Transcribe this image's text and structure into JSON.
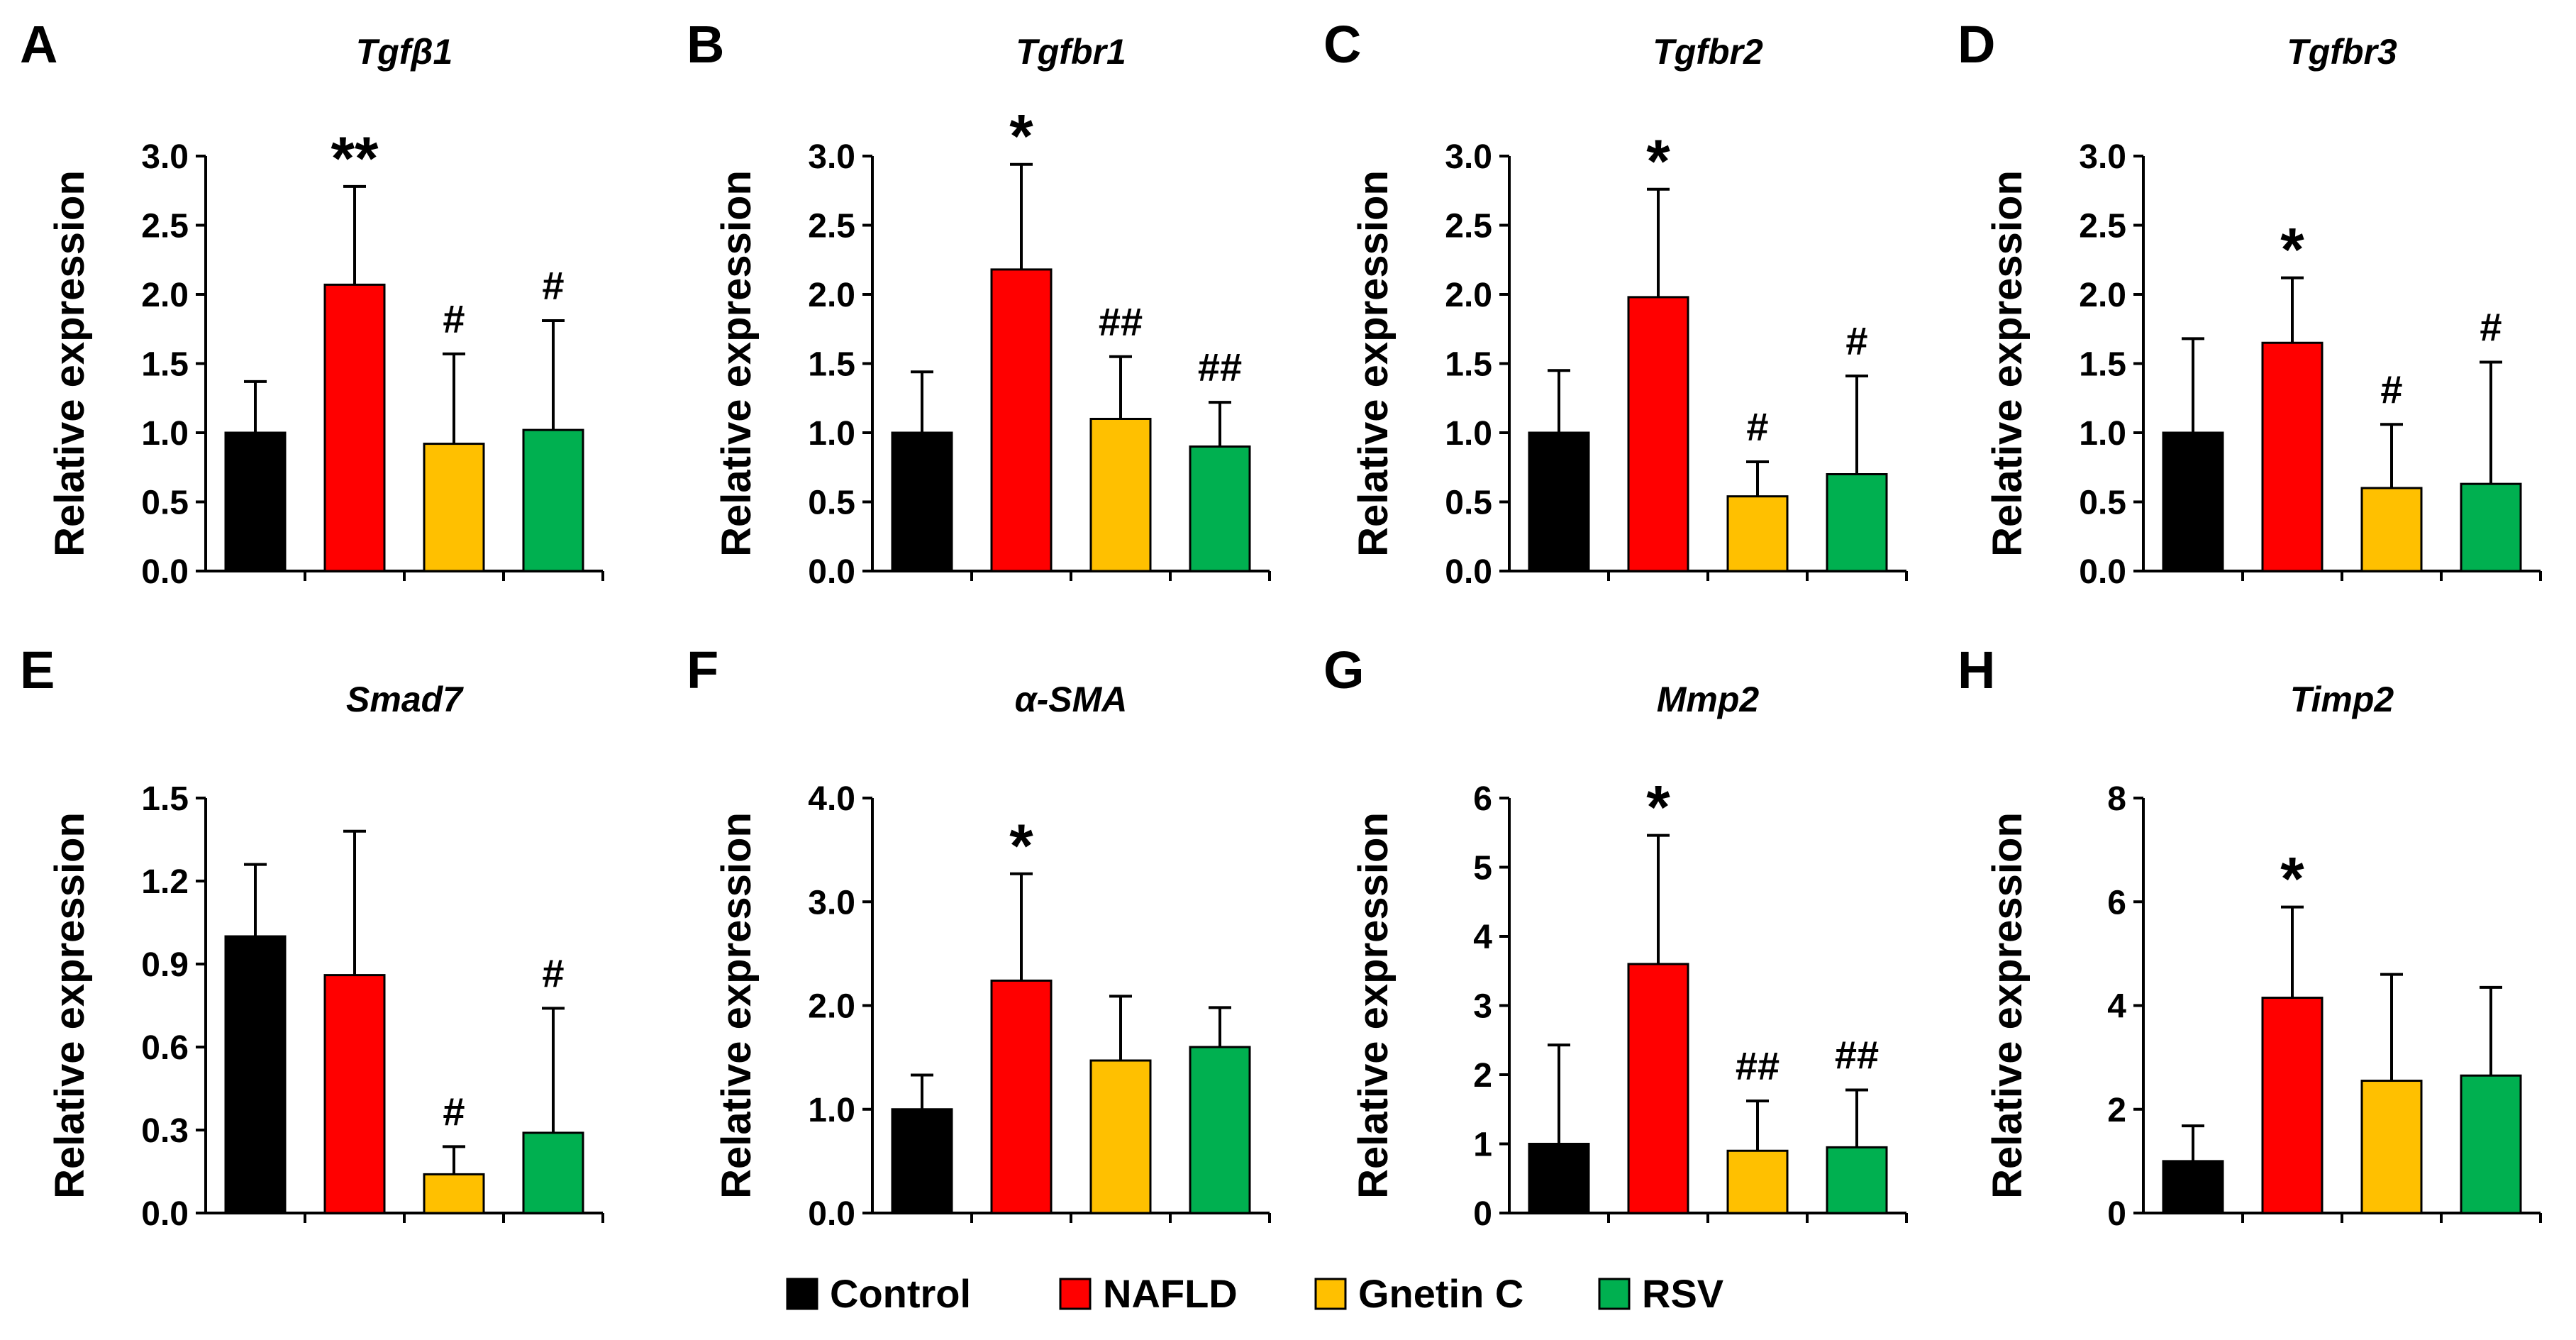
{
  "legend": [
    {
      "label": "Control",
      "color": "#000000"
    },
    {
      "label": "NAFLD",
      "color": "#ff0000"
    },
    {
      "label": "Gnetin C",
      "color": "#ffc000"
    },
    {
      "label": "RSV",
      "color": "#00b050"
    }
  ],
  "chart_data": [
    {
      "type": "bar",
      "letter": "A",
      "title": "Tgfβ1",
      "ylabel": "Relative expression",
      "ylim": [
        0,
        3.0
      ],
      "yticks": [
        "0.0",
        "0.5",
        "1.0",
        "1.5",
        "2.0",
        "2.5",
        "3.0"
      ],
      "categories": [
        "Control",
        "NAFLD",
        "Gnetin C",
        "RSV"
      ],
      "values": [
        1.0,
        2.07,
        0.92,
        1.02
      ],
      "errors": [
        0.37,
        0.71,
        0.65,
        0.79
      ],
      "annotations": [
        "",
        "**",
        "#",
        "#"
      ]
    },
    {
      "type": "bar",
      "letter": "B",
      "title": "Tgfbr1",
      "ylabel": "Relative expression",
      "ylim": [
        0,
        3.0
      ],
      "yticks": [
        "0.0",
        "0.5",
        "1.0",
        "1.5",
        "2.0",
        "2.5",
        "3.0"
      ],
      "categories": [
        "Control",
        "NAFLD",
        "Gnetin C",
        "RSV"
      ],
      "values": [
        1.0,
        2.18,
        1.1,
        0.9
      ],
      "errors": [
        0.44,
        0.76,
        0.45,
        0.32
      ],
      "annotations": [
        "",
        "*",
        "##",
        "##"
      ]
    },
    {
      "type": "bar",
      "letter": "C",
      "title": "Tgfbr2",
      "ylabel": "Relative expression",
      "ylim": [
        0,
        3.0
      ],
      "yticks": [
        "0.0",
        "0.5",
        "1.0",
        "1.5",
        "2.0",
        "2.5",
        "3.0"
      ],
      "categories": [
        "Control",
        "NAFLD",
        "Gnetin C",
        "RSV"
      ],
      "values": [
        1.0,
        1.98,
        0.54,
        0.7
      ],
      "errors": [
        0.45,
        0.78,
        0.25,
        0.71
      ],
      "annotations": [
        "",
        "*",
        "#",
        "#"
      ]
    },
    {
      "type": "bar",
      "letter": "D",
      "title": "Tgfbr3",
      "ylabel": "Relative expression",
      "ylim": [
        0,
        3.0
      ],
      "yticks": [
        "0.0",
        "0.5",
        "1.0",
        "1.5",
        "2.0",
        "2.5",
        "3.0"
      ],
      "categories": [
        "Control",
        "NAFLD",
        "Gnetin C",
        "RSV"
      ],
      "values": [
        1.0,
        1.65,
        0.6,
        0.63
      ],
      "errors": [
        0.68,
        0.47,
        0.46,
        0.88
      ],
      "annotations": [
        "",
        "*",
        "#",
        "#"
      ]
    },
    {
      "type": "bar",
      "letter": "E",
      "title": "Smad7",
      "ylabel": "Relative expression",
      "ylim": [
        0,
        1.5
      ],
      "yticks": [
        "0.0",
        "0.3",
        "0.6",
        "0.9",
        "1.2",
        "1.5"
      ],
      "categories": [
        "Control",
        "NAFLD",
        "Gnetin C",
        "RSV"
      ],
      "values": [
        1.0,
        0.86,
        0.14,
        0.29
      ],
      "errors": [
        0.26,
        0.52,
        0.1,
        0.45
      ],
      "annotations": [
        "",
        "",
        "#",
        "#"
      ]
    },
    {
      "type": "bar",
      "letter": "F",
      "title": "α-SMA",
      "ylabel": "Relative expression",
      "ylim": [
        0,
        4.0
      ],
      "yticks": [
        "0.0",
        "1.0",
        "2.0",
        "3.0",
        "4.0"
      ],
      "categories": [
        "Control",
        "NAFLD",
        "Gnetin C",
        "RSV"
      ],
      "values": [
        1.0,
        2.24,
        1.47,
        1.6
      ],
      "errors": [
        0.33,
        1.03,
        0.62,
        0.38
      ],
      "annotations": [
        "",
        "*",
        "",
        ""
      ]
    },
    {
      "type": "bar",
      "letter": "G",
      "title": "Mmp2",
      "ylabel": "Relative expression",
      "ylim": [
        0,
        6
      ],
      "yticks": [
        "0",
        "1",
        "2",
        "3",
        "4",
        "5",
        "6"
      ],
      "categories": [
        "Control",
        "NAFLD",
        "Gnetin C",
        "RSV"
      ],
      "values": [
        1.0,
        3.6,
        0.9,
        0.95
      ],
      "errors": [
        1.43,
        1.86,
        0.72,
        0.83
      ],
      "annotations": [
        "",
        "*",
        "##",
        "##"
      ]
    },
    {
      "type": "bar",
      "letter": "H",
      "title": "Timp2",
      "ylabel": "Relative expression",
      "ylim": [
        0,
        8
      ],
      "yticks": [
        "0",
        "2",
        "4",
        "6",
        "8"
      ],
      "categories": [
        "Control",
        "NAFLD",
        "Gnetin C",
        "RSV"
      ],
      "values": [
        1.0,
        4.15,
        2.55,
        2.65
      ],
      "errors": [
        0.68,
        1.75,
        2.05,
        1.7
      ],
      "annotations": [
        "",
        "*",
        "",
        ""
      ]
    }
  ]
}
